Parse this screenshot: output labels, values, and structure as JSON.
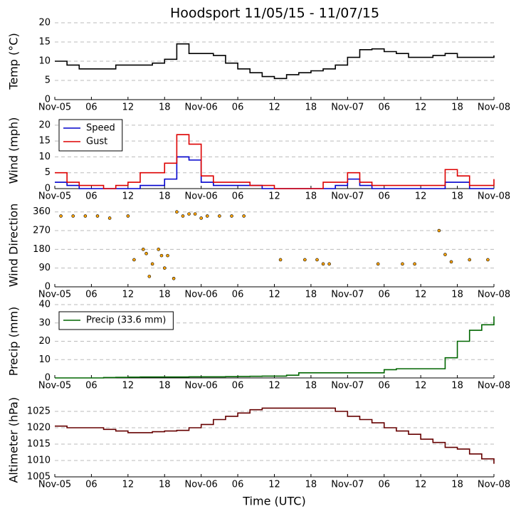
{
  "chart_data": [
    {
      "type": "line",
      "title": "Hoodsport 11/05/15 - 11/07/15",
      "y_label": "Temp (°C)",
      "x": [
        0,
        2,
        4,
        6,
        8,
        10,
        12,
        14,
        16,
        18,
        20,
        22,
        24,
        26,
        28,
        30,
        32,
        34,
        36,
        38,
        40,
        42,
        44,
        46,
        48,
        50,
        52,
        54,
        56,
        58,
        60,
        62,
        64,
        66,
        68,
        70,
        72
      ],
      "series": [
        {
          "color": "#000000",
          "values": [
            10,
            9,
            8,
            8,
            8,
            9,
            9,
            9,
            9.5,
            10.5,
            14.5,
            12,
            12,
            11.5,
            9.5,
            8,
            7,
            6,
            5.5,
            6.5,
            7,
            7.5,
            8,
            9,
            11,
            13,
            13.2,
            12.5,
            12,
            11,
            11,
            11.5,
            12,
            11,
            11,
            11,
            11.5
          ]
        }
      ],
      "xlim": [
        0,
        72
      ],
      "xticks": [
        {
          "value": 0,
          "label": "Nov-05"
        },
        {
          "value": 6,
          "label": "06"
        },
        {
          "value": 12,
          "label": "12"
        },
        {
          "value": 18,
          "label": "18"
        },
        {
          "value": 24,
          "label": "Nov-06"
        },
        {
          "value": 30,
          "label": "06"
        },
        {
          "value": 36,
          "label": "12"
        },
        {
          "value": 42,
          "label": "18"
        },
        {
          "value": 48,
          "label": "Nov-07"
        },
        {
          "value": 54,
          "label": "06"
        },
        {
          "value": 60,
          "label": "12"
        },
        {
          "value": 66,
          "label": "18"
        },
        {
          "value": 72,
          "label": "Nov-08"
        }
      ],
      "ylim": [
        0,
        20
      ],
      "yticks": [
        0,
        5,
        10,
        15,
        20
      ],
      "grid": true
    },
    {
      "type": "line",
      "y_label": "Wind (mph)",
      "legend": "upper left",
      "x": [
        0,
        2,
        4,
        6,
        8,
        10,
        12,
        14,
        16,
        18,
        20,
        22,
        24,
        26,
        28,
        30,
        32,
        34,
        36,
        38,
        40,
        42,
        44,
        46,
        48,
        50,
        52,
        54,
        56,
        58,
        60,
        62,
        64,
        66,
        68,
        70,
        72
      ],
      "series": [
        {
          "name": "Speed",
          "color": "#0000cc",
          "values": [
            2,
            1,
            0,
            0,
            0,
            0,
            0,
            1,
            1,
            3,
            10,
            9,
            2,
            1,
            1,
            1,
            1,
            0,
            0,
            0,
            0,
            0,
            0,
            1,
            3,
            1,
            0,
            0,
            0,
            0,
            0,
            0,
            2,
            2,
            0,
            0,
            0
          ]
        },
        {
          "name": "Gust",
          "color": "#dd0000",
          "values": [
            5,
            2,
            1,
            1,
            0,
            1,
            2,
            5,
            5,
            8,
            17,
            14,
            4,
            2,
            2,
            2,
            1,
            1,
            0,
            0,
            0,
            0,
            2,
            2,
            5,
            2,
            1,
            1,
            1,
            1,
            1,
            1,
            6,
            4,
            1,
            1,
            3
          ]
        }
      ],
      "xlim": [
        0,
        72
      ],
      "xticks": [
        {
          "value": 0,
          "label": "Nov-05"
        },
        {
          "value": 6,
          "label": "06"
        },
        {
          "value": 12,
          "label": "12"
        },
        {
          "value": 18,
          "label": "18"
        },
        {
          "value": 24,
          "label": "Nov-06"
        },
        {
          "value": 30,
          "label": "06"
        },
        {
          "value": 36,
          "label": "12"
        },
        {
          "value": 42,
          "label": "18"
        },
        {
          "value": 48,
          "label": "Nov-07"
        },
        {
          "value": 54,
          "label": "06"
        },
        {
          "value": 60,
          "label": "12"
        },
        {
          "value": 66,
          "label": "18"
        },
        {
          "value": 72,
          "label": "Nov-08"
        }
      ],
      "ylim": [
        0,
        24
      ],
      "yticks": [
        0,
        5,
        10,
        15,
        20
      ],
      "grid": true
    },
    {
      "type": "scatter",
      "y_label": "Wind Direction",
      "x": [
        1,
        3,
        5,
        7,
        9,
        12,
        13,
        14.5,
        15,
        15.5,
        16,
        17,
        17.5,
        18,
        18.5,
        19.5,
        20,
        21,
        22,
        23,
        24,
        25,
        27,
        29,
        31,
        37,
        41,
        43,
        44,
        45,
        53,
        57,
        59,
        63,
        64,
        65,
        68,
        71
      ],
      "series": [
        {
          "color": "#ffa500",
          "values": [
            340,
            340,
            340,
            340,
            330,
            340,
            130,
            180,
            160,
            50,
            110,
            180,
            150,
            90,
            150,
            40,
            360,
            340,
            350,
            350,
            330,
            340,
            340,
            340,
            340,
            130,
            130,
            130,
            110,
            110,
            110,
            110,
            110,
            270,
            155,
            120,
            130,
            130
          ]
        }
      ],
      "xlim": [
        0,
        72
      ],
      "xticks": [
        {
          "value": 0,
          "label": "Nov-05"
        },
        {
          "value": 6,
          "label": "06"
        },
        {
          "value": 12,
          "label": "12"
        },
        {
          "value": 18,
          "label": "18"
        },
        {
          "value": 24,
          "label": "Nov-06"
        },
        {
          "value": 30,
          "label": "06"
        },
        {
          "value": 36,
          "label": "12"
        },
        {
          "value": 42,
          "label": "18"
        },
        {
          "value": 48,
          "label": "Nov-07"
        },
        {
          "value": 54,
          "label": "06"
        },
        {
          "value": 60,
          "label": "12"
        },
        {
          "value": 66,
          "label": "18"
        },
        {
          "value": 72,
          "label": "Nov-08"
        }
      ],
      "ylim": [
        0,
        400
      ],
      "yticks": [
        0,
        90,
        180,
        270,
        360
      ],
      "grid": true
    },
    {
      "type": "line",
      "y_label": "Precip (mm)",
      "legend": "upper left",
      "x": [
        0,
        2,
        4,
        6,
        8,
        10,
        12,
        14,
        16,
        18,
        20,
        22,
        24,
        26,
        28,
        30,
        32,
        34,
        36,
        38,
        40,
        42,
        44,
        46,
        48,
        50,
        52,
        54,
        56,
        58,
        60,
        62,
        64,
        66,
        68,
        70,
        72
      ],
      "series": [
        {
          "name": "Precip (33.6 mm)",
          "color": "#006600",
          "values": [
            0,
            0,
            0,
            0,
            0.2,
            0.3,
            0.4,
            0.5,
            0.5,
            0.5,
            0.5,
            0.6,
            0.6,
            0.6,
            0.7,
            0.8,
            0.9,
            1,
            1,
            1.5,
            2.8,
            2.8,
            2.8,
            2.8,
            2.8,
            2.8,
            2.8,
            4.5,
            5,
            5,
            5,
            5,
            11,
            20,
            26,
            29,
            33.6
          ]
        }
      ],
      "xlim": [
        0,
        72
      ],
      "xticks": [
        {
          "value": 0,
          "label": "Nov-05"
        },
        {
          "value": 6,
          "label": "06"
        },
        {
          "value": 12,
          "label": "12"
        },
        {
          "value": 18,
          "label": "18"
        },
        {
          "value": 24,
          "label": "Nov-06"
        },
        {
          "value": 30,
          "label": "06"
        },
        {
          "value": 36,
          "label": "12"
        },
        {
          "value": 42,
          "label": "18"
        },
        {
          "value": 48,
          "label": "Nov-07"
        },
        {
          "value": 54,
          "label": "06"
        },
        {
          "value": 60,
          "label": "12"
        },
        {
          "value": 66,
          "label": "18"
        },
        {
          "value": 72,
          "label": "Nov-08"
        }
      ],
      "ylim": [
        0,
        40
      ],
      "yticks": [
        0,
        10,
        20,
        30,
        40
      ],
      "grid": true
    },
    {
      "type": "line",
      "y_label": "Altimeter (hPa)",
      "x_label": "Time (UTC)",
      "x": [
        0,
        2,
        4,
        6,
        8,
        10,
        12,
        14,
        16,
        18,
        20,
        22,
        24,
        26,
        28,
        30,
        32,
        34,
        36,
        38,
        40,
        42,
        44,
        46,
        48,
        50,
        52,
        54,
        56,
        58,
        60,
        62,
        64,
        66,
        68,
        70,
        72
      ],
      "series": [
        {
          "color": "#660000",
          "values": [
            1020.5,
            1020,
            1020,
            1020,
            1019.5,
            1019,
            1018.5,
            1018.5,
            1018.8,
            1019,
            1019.2,
            1020,
            1021,
            1022.5,
            1023.5,
            1024.5,
            1025.5,
            1026,
            1026,
            1026,
            1026,
            1026,
            1026,
            1025,
            1023.5,
            1022.5,
            1021.5,
            1020,
            1019,
            1018,
            1016.5,
            1015.5,
            1014,
            1013.5,
            1012,
            1010.5,
            1009
          ]
        }
      ],
      "xlim": [
        0,
        72
      ],
      "xticks": [
        {
          "value": 0,
          "label": "Nov-05"
        },
        {
          "value": 6,
          "label": "06"
        },
        {
          "value": 12,
          "label": "12"
        },
        {
          "value": 18,
          "label": "18"
        },
        {
          "value": 24,
          "label": "Nov-06"
        },
        {
          "value": 30,
          "label": "06"
        },
        {
          "value": 36,
          "label": "12"
        },
        {
          "value": 42,
          "label": "18"
        },
        {
          "value": 48,
          "label": "Nov-07"
        },
        {
          "value": 54,
          "label": "06"
        },
        {
          "value": 60,
          "label": "12"
        },
        {
          "value": 66,
          "label": "18"
        },
        {
          "value": 72,
          "label": "Nov-08"
        }
      ],
      "ylim": [
        1005,
        1027.5
      ],
      "yticks": [
        1005,
        1010,
        1015,
        1020,
        1025
      ],
      "grid": true
    }
  ]
}
